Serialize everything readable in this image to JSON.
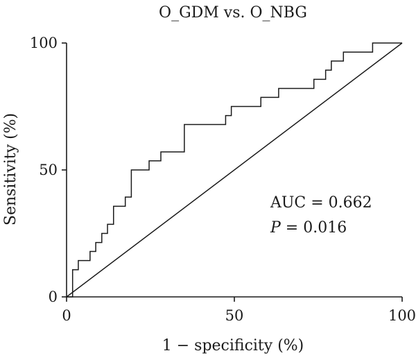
{
  "chart_data": {
    "type": "line",
    "title": "O_GDM vs. O_NBG",
    "xlabel": "1 − specificity (%)",
    "ylabel": "Sensitivity (%)",
    "xlim": [
      0,
      100
    ],
    "ylim": [
      0,
      100
    ],
    "xticks": [
      0,
      50,
      100
    ],
    "yticks": [
      0,
      50,
      100
    ],
    "grid": false,
    "series": [
      {
        "style": "step",
        "x": [
          0,
          1.8,
          1.8,
          3.5,
          3.5,
          7,
          7,
          8.7,
          8.7,
          10.5,
          10.5,
          12.2,
          12.2,
          14,
          14,
          17.5,
          17.5,
          19.3,
          19.3,
          24.6,
          24.6,
          28.1,
          28.1,
          35.1,
          35.1,
          47.4,
          47.4,
          49.1,
          49.1,
          57.9,
          57.9,
          63.2,
          63.2,
          73.7,
          73.7,
          77.2,
          77.2,
          78.9,
          78.9,
          82.5,
          82.5,
          91.2,
          91.2,
          100
        ],
        "y": [
          0,
          0,
          10.7,
          10.7,
          14.3,
          14.3,
          17.9,
          17.9,
          21.4,
          21.4,
          25,
          25,
          28.6,
          28.6,
          35.7,
          35.7,
          39.3,
          39.3,
          50,
          50,
          53.6,
          53.6,
          57.1,
          57.1,
          67.9,
          67.9,
          71.4,
          71.4,
          75,
          75,
          78.6,
          78.6,
          82.1,
          82.1,
          85.7,
          85.7,
          89.3,
          89.3,
          92.9,
          92.9,
          96.4,
          96.4,
          100,
          100
        ]
      },
      {
        "style": "reference-diagonal",
        "x": [
          0,
          100
        ],
        "y": [
          0,
          100
        ]
      }
    ],
    "annotations": {
      "auc": "AUC = 0.662",
      "p_symbol": "P",
      "p_rest": " = 0.016"
    }
  }
}
